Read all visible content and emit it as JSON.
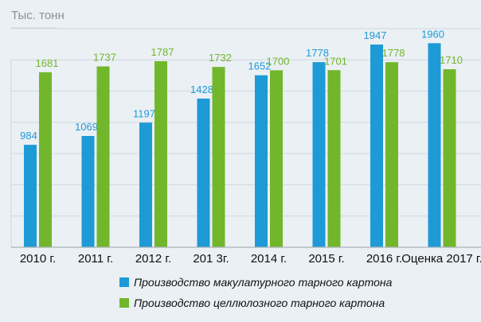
{
  "chart_data": {
    "type": "bar",
    "unit_label": "Тыс. тонн",
    "categories": [
      "2010 г.",
      "2011 г.",
      "2012 г.",
      "201 3г.",
      "2014 г.",
      "2015 г.",
      "2016 г.",
      "Оценка 2017 г."
    ],
    "series": [
      {
        "name": "Производство макулатурного тарного картона",
        "color": "#1e9ad6",
        "values": [
          984,
          1069,
          1197,
          1428,
          1652,
          1778,
          1947,
          1960
        ]
      },
      {
        "name": "Производство целлюлозного тарного картона",
        "color": "#72b62b",
        "values": [
          1681,
          1737,
          1787,
          1732,
          1700,
          1701,
          1778,
          1710
        ]
      }
    ],
    "ylim": [
      0,
      2100
    ],
    "grid": true,
    "legend_position": "bottom"
  }
}
